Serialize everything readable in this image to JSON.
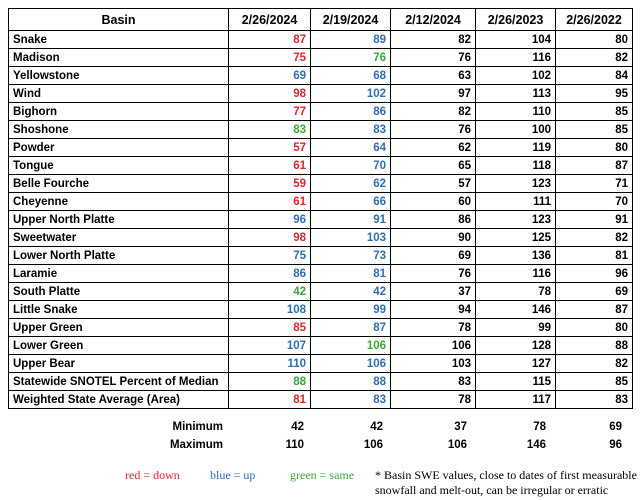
{
  "table": {
    "header": [
      "Basin",
      "2/26/2024",
      "2/19/2024",
      "2/12/2024",
      "2/26/2023",
      "2/26/2022"
    ],
    "rows": [
      {
        "cells": [
          "Snake",
          87,
          89,
          82,
          104,
          80
        ],
        "colors": [
          "#e3242b",
          "#2f6db8"
        ]
      },
      {
        "cells": [
          "Madison",
          75,
          76,
          76,
          116,
          82
        ],
        "colors": [
          "#e3242b",
          "#3aa935"
        ]
      },
      {
        "cells": [
          "Yellowstone",
          69,
          68,
          63,
          102,
          84
        ],
        "colors": [
          "#2f6db8",
          "#2f6db8"
        ]
      },
      {
        "cells": [
          "Wind",
          98,
          102,
          97,
          113,
          95
        ],
        "colors": [
          "#e3242b",
          "#2f6db8"
        ]
      },
      {
        "cells": [
          "Bighorn",
          77,
          86,
          82,
          110,
          85
        ],
        "colors": [
          "#e3242b",
          "#2f6db8"
        ]
      },
      {
        "cells": [
          "Shoshone",
          83,
          83,
          76,
          100,
          85
        ],
        "colors": [
          "#3aa935",
          "#2f6db8"
        ]
      },
      {
        "cells": [
          "Powder",
          57,
          64,
          62,
          119,
          80
        ],
        "colors": [
          "#e3242b",
          "#2f6db8"
        ]
      },
      {
        "cells": [
          "Tongue",
          61,
          70,
          65,
          118,
          87
        ],
        "colors": [
          "#e3242b",
          "#2f6db8"
        ]
      },
      {
        "cells": [
          "Belle Fourche",
          59,
          62,
          57,
          123,
          71
        ],
        "colors": [
          "#e3242b",
          "#2f6db8"
        ]
      },
      {
        "cells": [
          "Cheyenne",
          61,
          66,
          60,
          111,
          70
        ],
        "colors": [
          "#e3242b",
          "#2f6db8"
        ]
      },
      {
        "cells": [
          "Upper North Platte",
          96,
          91,
          86,
          123,
          91
        ],
        "colors": [
          "#2f6db8",
          "#2f6db8"
        ]
      },
      {
        "cells": [
          "Sweetwater",
          98,
          103,
          90,
          125,
          82
        ],
        "colors": [
          "#e3242b",
          "#2f6db8"
        ]
      },
      {
        "cells": [
          "Lower North Platte",
          75,
          73,
          69,
          136,
          81
        ],
        "colors": [
          "#2f6db8",
          "#2f6db8"
        ]
      },
      {
        "cells": [
          "Laramie",
          86,
          81,
          76,
          116,
          96
        ],
        "colors": [
          "#2f6db8",
          "#2f6db8"
        ]
      },
      {
        "cells": [
          "South Platte",
          42,
          42,
          37,
          78,
          69
        ],
        "colors": [
          "#3aa935",
          "#2f6db8"
        ]
      },
      {
        "cells": [
          "Little Snake",
          108,
          99,
          94,
          146,
          87
        ],
        "colors": [
          "#2f6db8",
          "#2f6db8"
        ]
      },
      {
        "cells": [
          "Upper Green",
          85,
          87,
          78,
          99,
          80
        ],
        "colors": [
          "#e3242b",
          "#2f6db8"
        ]
      },
      {
        "cells": [
          "Lower Green",
          107,
          106,
          106,
          128,
          88
        ],
        "colors": [
          "#2f6db8",
          "#3aa935"
        ]
      },
      {
        "cells": [
          "Upper Bear",
          110,
          106,
          103,
          127,
          82
        ],
        "colors": [
          "#2f6db8",
          "#2f6db8"
        ]
      },
      {
        "cells": [
          "Statewide SNOTEL Percent of Median",
          88,
          88,
          83,
          115,
          85
        ],
        "colors": [
          "#3aa935",
          "#2f6db8"
        ]
      },
      {
        "cells": [
          "Weighted State Average (Area)",
          81,
          83,
          78,
          117,
          83
        ],
        "colors": [
          "#e3242b",
          "#2f6db8"
        ]
      }
    ],
    "summary": [
      {
        "label": "Minimum",
        "values": [
          42,
          42,
          37,
          78,
          69
        ]
      },
      {
        "label": "Maximum",
        "values": [
          110,
          106,
          106,
          146,
          96
        ]
      }
    ]
  },
  "legend": [
    {
      "label": "red = down",
      "color": "#e3242b"
    },
    {
      "label": "blue = up",
      "color": "#2f6db8"
    },
    {
      "label": "green = same",
      "color": "#3aa935"
    }
  ],
  "note": [
    "* Basin SWE values, close to dates of first measurable",
    "snowfall and melt-out, can be irregular or erratic"
  ]
}
